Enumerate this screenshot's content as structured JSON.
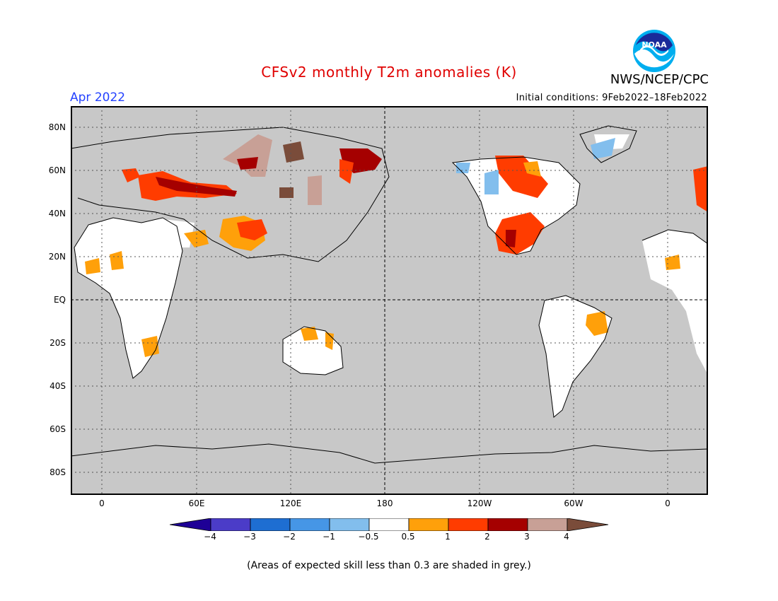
{
  "title": "CFSv2 monthly T2m anomalies (K)",
  "agency": "NWS/NCEP/CPC",
  "logo_text": "NOAA",
  "period": "Apr 2022",
  "initial_conditions": "Initial conditions: 9Feb2022–18Feb2022",
  "footnote": "(Areas of expected skill less than 0.3 are shaded in grey.)",
  "lat_labels": [
    "80N",
    "60N",
    "40N",
    "20N",
    "EQ",
    "20S",
    "40S",
    "60S",
    "80S"
  ],
  "lon_labels": [
    "0",
    "60E",
    "120E",
    "180",
    "120W",
    "60W",
    "0"
  ],
  "colorbar": {
    "colors": [
      "#1e0096",
      "#4b3cc8",
      "#1e6ed2",
      "#4696e6",
      "#82beed",
      "#ffffff",
      "#ffa00a",
      "#ff3c00",
      "#a50000",
      "#c8a096",
      "#7a4c3a"
    ],
    "labels": [
      "−4",
      "−3",
      "−2",
      "−1",
      "−0.5",
      "0.5",
      "1",
      "2",
      "3",
      "4"
    ]
  },
  "colors": {
    "land": "#ffffff",
    "skill_mask": "#c8c8c8",
    "title": "#e00000",
    "period": "#2442ff"
  }
}
